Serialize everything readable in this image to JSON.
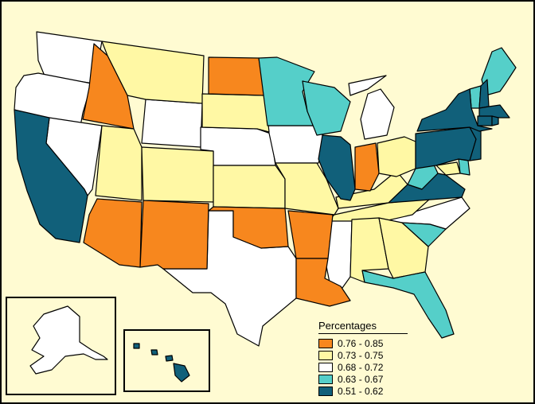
{
  "legend": {
    "title": "Percentages",
    "items": [
      {
        "label": "0.76 - 0.85",
        "color": "#f7871e"
      },
      {
        "label": "0.73 - 0.75",
        "color": "#fff8a4"
      },
      {
        "label": "0.68 - 0.72",
        "color": "#ffffff"
      },
      {
        "label": "0.63 - 0.67",
        "color": "#55cfc9"
      },
      {
        "label": "0.51 - 0.62",
        "color": "#11607a"
      }
    ]
  },
  "classes": {
    "c1": "#f7871e",
    "c2": "#fff8a4",
    "c3": "#ffffff",
    "c4": "#55cfc9",
    "c5": "#11607a"
  }
}
